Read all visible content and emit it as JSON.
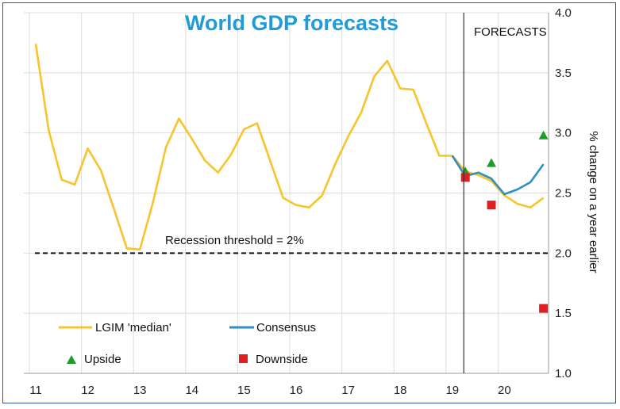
{
  "chart_data": {
    "type": "line",
    "title": "World GDP forecasts",
    "ylabel": "% change on a year earlier",
    "xlabel": "",
    "ylim": [
      1.0,
      4.0
    ],
    "yticks": [
      "1.0",
      "1.5",
      "2.0",
      "2.5",
      "3.0",
      "3.5",
      "4.0"
    ],
    "xticks": [
      "11",
      "12",
      "13",
      "14",
      "15",
      "16",
      "17",
      "18",
      "19",
      "20"
    ],
    "grid": true,
    "forecast_label": "FORECASTS",
    "forecast_start": 2019.25,
    "threshold": {
      "value": 2.0,
      "label": "Recession threshold = 2%"
    },
    "series": [
      {
        "name": "LGIM  'median'",
        "color": "#f7c42b",
        "x": [
          2011.0,
          2011.25,
          2011.5,
          2011.75,
          2012.0,
          2012.25,
          2012.5,
          2012.75,
          2013.0,
          2013.25,
          2013.5,
          2013.75,
          2014.0,
          2014.25,
          2014.5,
          2014.75,
          2015.0,
          2015.25,
          2015.5,
          2015.75,
          2016.0,
          2016.25,
          2016.5,
          2016.75,
          2017.0,
          2017.25,
          2017.5,
          2017.75,
          2018.0,
          2018.25,
          2018.5,
          2018.75,
          2019.0,
          2019.25,
          2019.5,
          2019.75,
          2020.0,
          2020.25,
          2020.5,
          2020.75
        ],
        "values": [
          3.74,
          3.02,
          2.61,
          2.57,
          2.87,
          2.69,
          2.37,
          2.04,
          2.03,
          2.42,
          2.88,
          3.12,
          2.95,
          2.77,
          2.67,
          2.82,
          3.03,
          3.08,
          2.77,
          2.46,
          2.4,
          2.38,
          2.48,
          2.74,
          2.97,
          3.17,
          3.47,
          3.6,
          3.37,
          3.36,
          3.08,
          2.81,
          2.81,
          2.68,
          2.65,
          2.6,
          2.48,
          2.41,
          2.38,
          2.46
        ]
      },
      {
        "name": "Consensus",
        "color": "#2e8fc6",
        "x": [
          2019.0,
          2019.25,
          2019.5,
          2019.75,
          2020.0,
          2020.25,
          2020.5,
          2020.75
        ],
        "values": [
          2.81,
          2.64,
          2.67,
          2.62,
          2.49,
          2.53,
          2.59,
          2.74
        ]
      }
    ],
    "scenarios": [
      {
        "name": "Upside",
        "marker": "triangle",
        "color": "#1a9e28",
        "x": [
          2019.25,
          2019.75,
          2020.75
        ],
        "values": [
          2.68,
          2.75,
          2.98
        ]
      },
      {
        "name": "Downside",
        "marker": "square",
        "color": "#e02020",
        "x": [
          2019.25,
          2019.75,
          2020.75
        ],
        "values": [
          2.63,
          2.4,
          1.54
        ]
      }
    ]
  }
}
